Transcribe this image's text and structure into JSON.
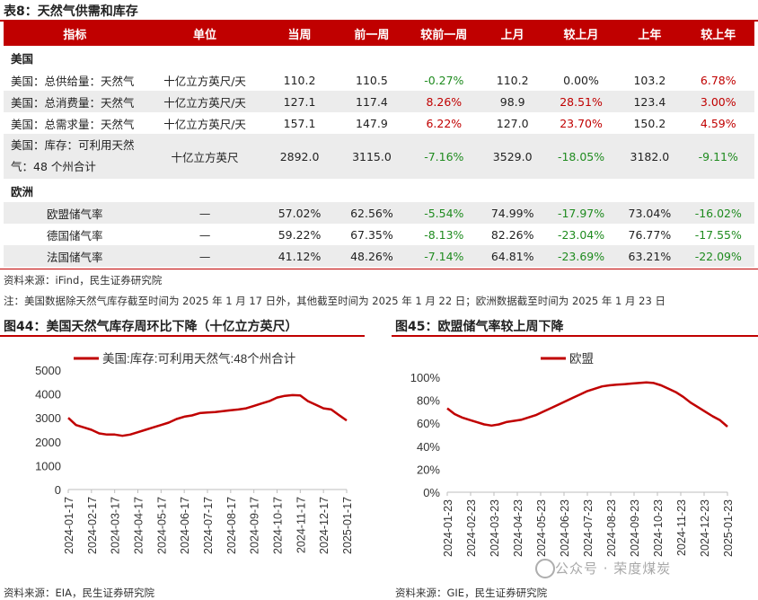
{
  "table": {
    "title": "表8：天然气供需和库存",
    "headers": [
      "指标",
      "单位",
      "当周",
      "前一周",
      "较前一周",
      "上月",
      "较上月",
      "上年",
      "较上年"
    ],
    "sections": [
      {
        "name": "美国",
        "rows": [
          {
            "cells": [
              "美国：总供给量：天然气",
              "十亿立方英尺/天",
              "110.2",
              "110.5",
              "-0.27%",
              "110.2",
              "0.00%",
              "103.2",
              "6.78%"
            ]
          },
          {
            "cells": [
              "美国：总消费量：天然气",
              "十亿立方英尺/天",
              "127.1",
              "117.4",
              "8.26%",
              "98.9",
              "28.51%",
              "123.4",
              "3.00%"
            ]
          },
          {
            "cells": [
              "美国：总需求量：天然气",
              "十亿立方英尺/天",
              "157.1",
              "147.9",
              "6.22%",
              "127.0",
              "23.70%",
              "150.2",
              "4.59%"
            ]
          },
          {
            "cells": [
              "美国：库存：可利用天然气：48 个州合计",
              "十亿立方英尺",
              "2892.0",
              "3115.0",
              "-7.16%",
              "3529.0",
              "-18.05%",
              "3182.0",
              "-9.11%"
            ]
          }
        ]
      },
      {
        "name": "欧洲",
        "rows": [
          {
            "cells": [
              "欧盟储气率",
              "—",
              "57.02%",
              "62.56%",
              "-5.54%",
              "74.99%",
              "-17.97%",
              "73.04%",
              "-16.02%"
            ]
          },
          {
            "cells": [
              "德国储气率",
              "—",
              "59.22%",
              "67.35%",
              "-8.13%",
              "82.26%",
              "-23.04%",
              "76.77%",
              "-17.55%"
            ]
          },
          {
            "cells": [
              "法国储气率",
              "—",
              "41.12%",
              "48.26%",
              "-7.14%",
              "64.81%",
              "-23.69%",
              "63.21%",
              "-22.09%"
            ]
          }
        ]
      }
    ],
    "source": "资料来源：iFind，民生证券研究院",
    "note": "注：美国数据除天然气库存截至时间为 2025 年 1 月 17 日外，其他截至时间为 2025 年 1 月 22 日；欧洲数据截至时间为 2025 年 1 月 23 日"
  },
  "colors": {
    "accent": "#c00000",
    "positive": "#c00000",
    "negative": "#1f8b1f"
  },
  "fig44": {
    "title": "图44：美国天然气库存周环比下降（十亿立方英尺）",
    "source": "资料来源：EIA，民生证券研究院"
  },
  "fig45": {
    "title": "图45：欧盟储气率较上周下降",
    "source": "资料来源：GIE，民生证券研究院"
  },
  "watermark": "公众号 · 荣度煤炭",
  "chart_data": [
    {
      "type": "line",
      "series": [
        {
          "name": "美国:库存:可利用天然气:48个州合计"
        }
      ],
      "x_ticks": [
        "2024-01-17",
        "2024-02-17",
        "2024-03-17",
        "2024-04-17",
        "2024-05-17",
        "2024-06-17",
        "2024-07-17",
        "2024-08-17",
        "2024-09-17",
        "2024-10-17",
        "2024-11-17",
        "2024-12-17",
        "2025-01-17"
      ],
      "y_ticks": [
        "0",
        "1000",
        "2000",
        "3000",
        "4000",
        "5000"
      ],
      "ylim": [
        0,
        5000
      ],
      "values": [
        3000,
        2700,
        2600,
        2500,
        2350,
        2300,
        2300,
        2250,
        2300,
        2400,
        2500,
        2600,
        2700,
        2800,
        2950,
        3050,
        3100,
        3200,
        3220,
        3240,
        3280,
        3320,
        3350,
        3400,
        3500,
        3600,
        3700,
        3850,
        3920,
        3950,
        3940,
        3700,
        3550,
        3400,
        3350,
        3115,
        2892
      ],
      "legend": "top-left"
    },
    {
      "type": "line",
      "series": [
        {
          "name": "欧盟"
        }
      ],
      "x_ticks": [
        "2024-01-23",
        "2024-02-23",
        "2024-03-23",
        "2024-04-23",
        "2024-05-23",
        "2024-06-23",
        "2024-07-23",
        "2024-08-23",
        "2024-09-23",
        "2024-10-23",
        "2024-11-23",
        "2024-12-23",
        "2025-01-23"
      ],
      "y_ticks": [
        "0%",
        "20%",
        "40%",
        "60%",
        "80%",
        "100%"
      ],
      "ylim": [
        0,
        100
      ],
      "values": [
        73,
        68,
        65,
        63,
        61,
        59,
        58,
        59,
        61,
        62,
        63,
        65,
        67,
        70,
        73,
        76,
        79,
        82,
        85,
        88,
        90,
        92,
        93,
        93.5,
        94,
        94.5,
        95,
        95.5,
        95,
        93,
        90,
        87,
        83,
        78,
        74,
        70,
        66,
        62.6,
        57
      ],
      "legend": "top-center"
    }
  ]
}
